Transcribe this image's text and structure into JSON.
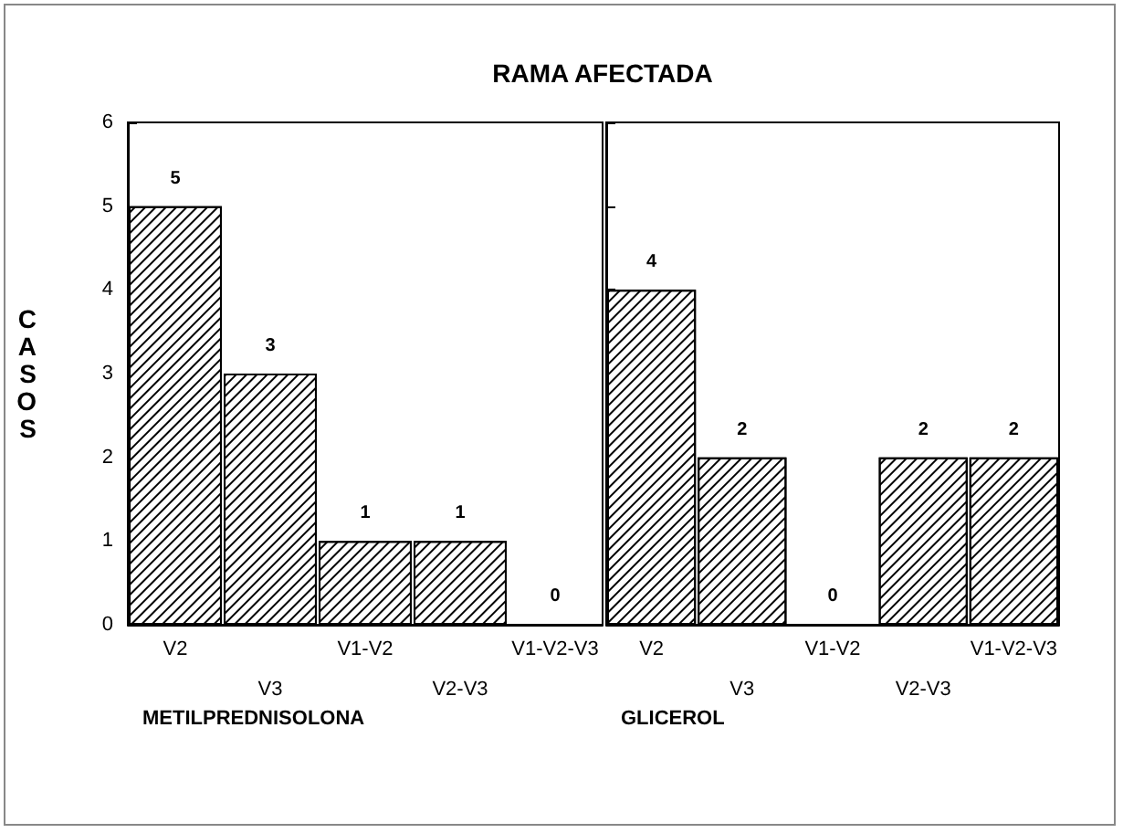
{
  "chart_data": [
    {
      "type": "bar",
      "title": "RAMA AFECTADA",
      "ylabel": "CASOS",
      "xlabel": "METILPREDNISOLONA",
      "categories": [
        "V2",
        "V3",
        "V1-V2",
        "V2-V3",
        "V1-V2-V3"
      ],
      "values": [
        5,
        3,
        1,
        1,
        0
      ],
      "color": "#000000",
      "ylim": [
        0,
        6
      ],
      "yticks": [
        0,
        1,
        2,
        3,
        4,
        5,
        6
      ],
      "data_labels": true,
      "grid": false
    },
    {
      "type": "bar",
      "xlabel": "GLICEROL",
      "categories": [
        "V2",
        "V3",
        "V1-V2",
        "V2-V3",
        "V1-V2-V3"
      ],
      "values": [
        4,
        2,
        0,
        2,
        2
      ],
      "color": "#000000",
      "ylim": [
        0,
        6
      ],
      "yticks": [
        0,
        1,
        2,
        3,
        4,
        5,
        6
      ],
      "data_labels": true,
      "grid": false,
      "tick_labels": "x"
    }
  ]
}
